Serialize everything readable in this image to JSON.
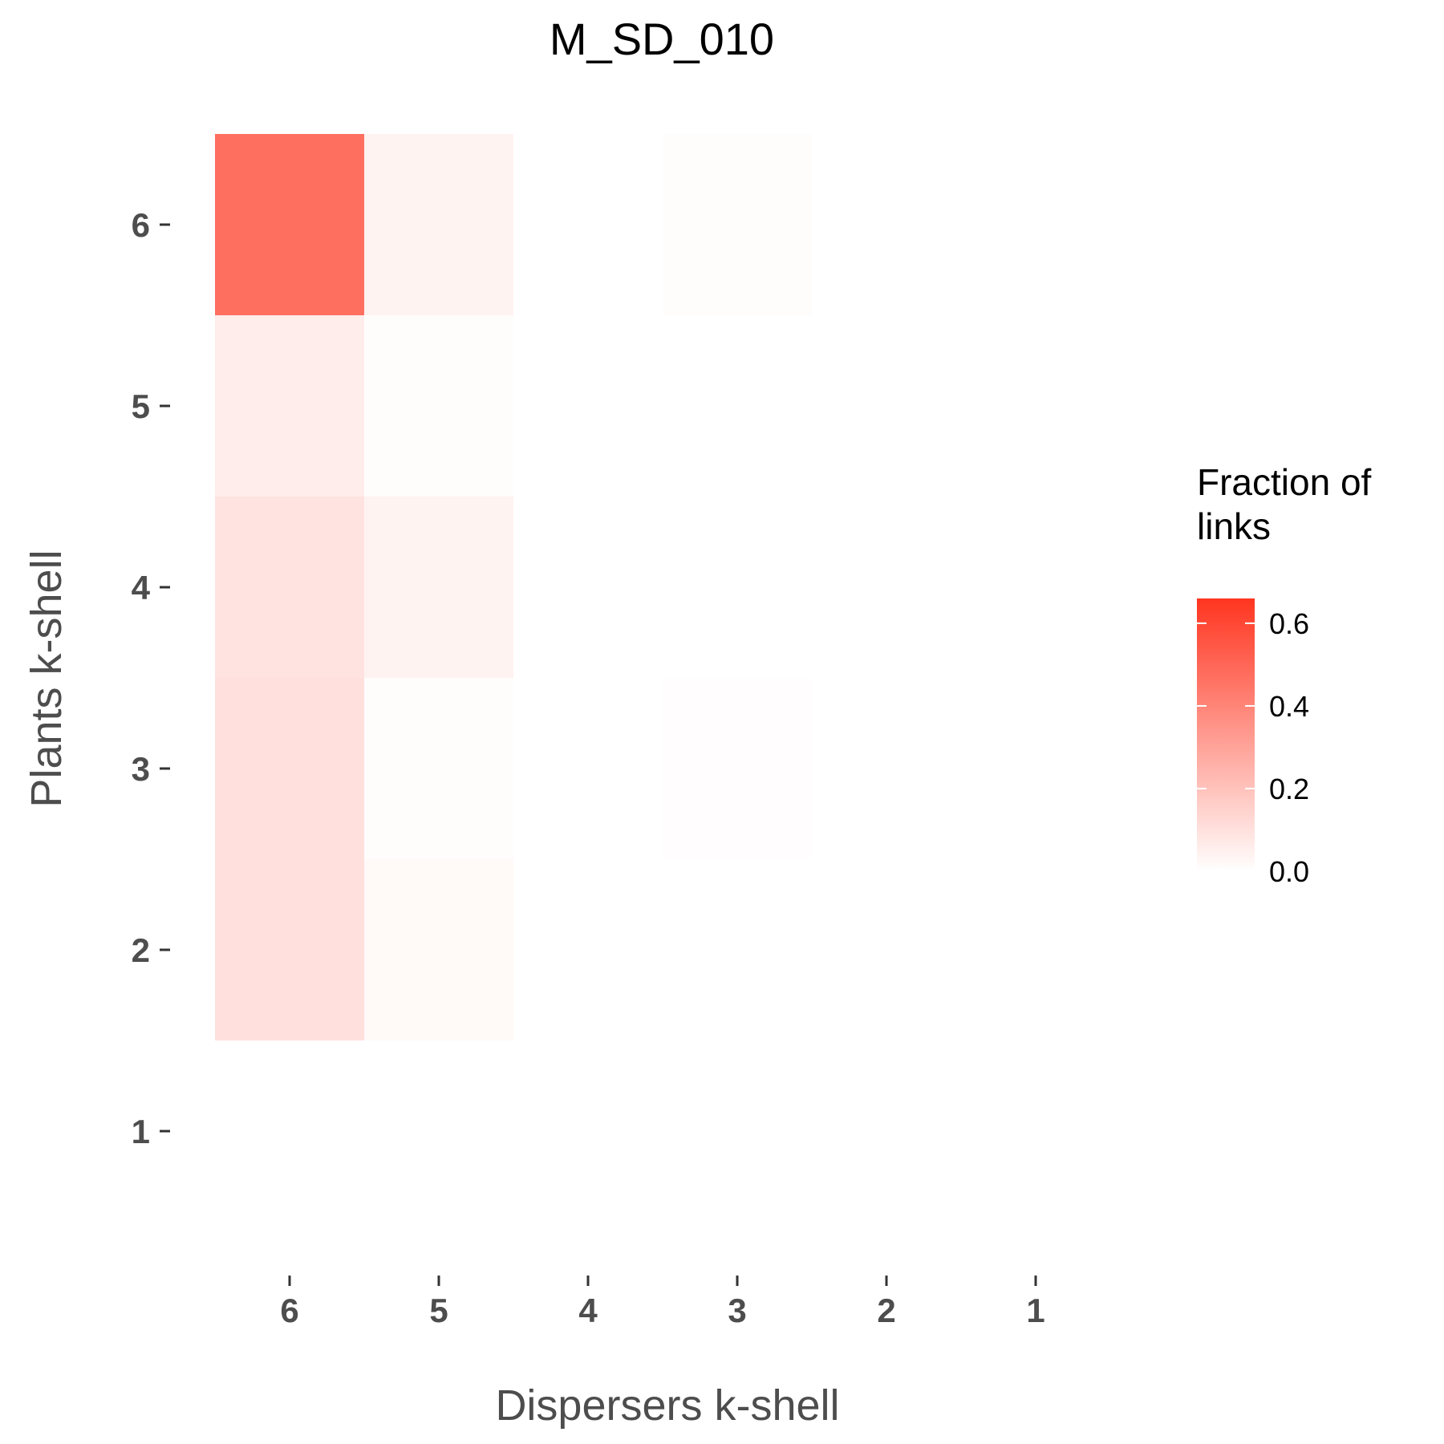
{
  "chart_data": {
    "type": "heatmap",
    "title": "M_SD_010",
    "xlabel": "Dispersers k-shell",
    "ylabel": "Plants k-shell",
    "x_categories": [
      "6",
      "5",
      "4",
      "3",
      "2",
      "1"
    ],
    "y_categories": [
      "6",
      "5",
      "4",
      "3",
      "2",
      "1"
    ],
    "cells": [
      {
        "x": "6",
        "y": "6",
        "value": 0.47
      },
      {
        "x": "5",
        "y": "6",
        "value": 0.04
      },
      {
        "x": "3",
        "y": "6",
        "value": 0.01
      },
      {
        "x": "6",
        "y": "5",
        "value": 0.06
      },
      {
        "x": "5",
        "y": "5",
        "value": 0.01
      },
      {
        "x": "6",
        "y": "4",
        "value": 0.09
      },
      {
        "x": "5",
        "y": "4",
        "value": 0.04
      },
      {
        "x": "6",
        "y": "3",
        "value": 0.1
      },
      {
        "x": "5",
        "y": "3",
        "value": 0.01
      },
      {
        "x": "3",
        "y": "3",
        "value": 0.005
      },
      {
        "x": "6",
        "y": "2",
        "value": 0.1
      },
      {
        "x": "5",
        "y": "2",
        "value": 0.02
      }
    ],
    "legend": {
      "title_lines": [
        "Fraction of",
        "links"
      ],
      "ticks": [
        "0.0",
        "0.2",
        "0.4",
        "0.6"
      ],
      "tick_values": [
        0.0,
        0.2,
        0.4,
        0.6
      ],
      "range": [
        0,
        0.66
      ],
      "color_low": "#ffffff",
      "color_high": "#ff3520",
      "placement": "right"
    },
    "grid": false
  }
}
